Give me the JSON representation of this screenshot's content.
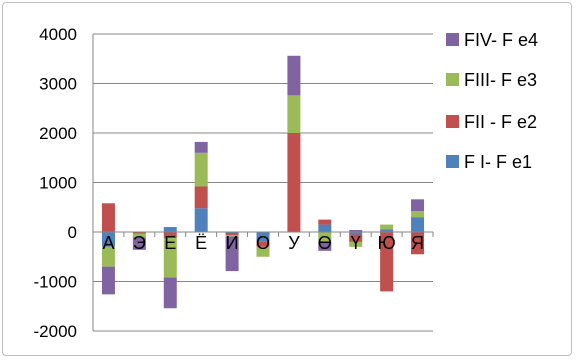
{
  "chart_data": {
    "type": "bar",
    "stacked": true,
    "title": "",
    "xlabel": "",
    "ylabel": "",
    "ylim": [
      -2000,
      4000
    ],
    "yticks": [
      4000,
      3000,
      2000,
      1000,
      0,
      -1000,
      -2000
    ],
    "grid": true,
    "legend_position": "right",
    "categories": [
      "А",
      "Э",
      "Е",
      "Ё",
      "И",
      "О",
      "У",
      "Ө",
      "Ү",
      "Ю",
      "Я"
    ],
    "series": [
      {
        "name": "F I- F e1",
        "color": "#4f81bd",
        "values": [
          -300,
          0,
          100,
          480,
          -20,
          -200,
          0,
          150,
          -50,
          50,
          300
        ]
      },
      {
        "name": "FII - F e2",
        "color": "#c0504d",
        "values": [
          580,
          -30,
          -120,
          440,
          -40,
          -100,
          2000,
          100,
          -150,
          -1200,
          -450
        ]
      },
      {
        "name": "FIII- F e3",
        "color": "#9bbb59",
        "values": [
          -400,
          -80,
          -800,
          680,
          -30,
          -200,
          760,
          -200,
          -100,
          100,
          120
        ]
      },
      {
        "name": "FIV- F e4",
        "color": "#8064a2",
        "values": [
          -560,
          -250,
          -620,
          220,
          -700,
          0,
          800,
          -180,
          40,
          0,
          240
        ]
      }
    ]
  }
}
